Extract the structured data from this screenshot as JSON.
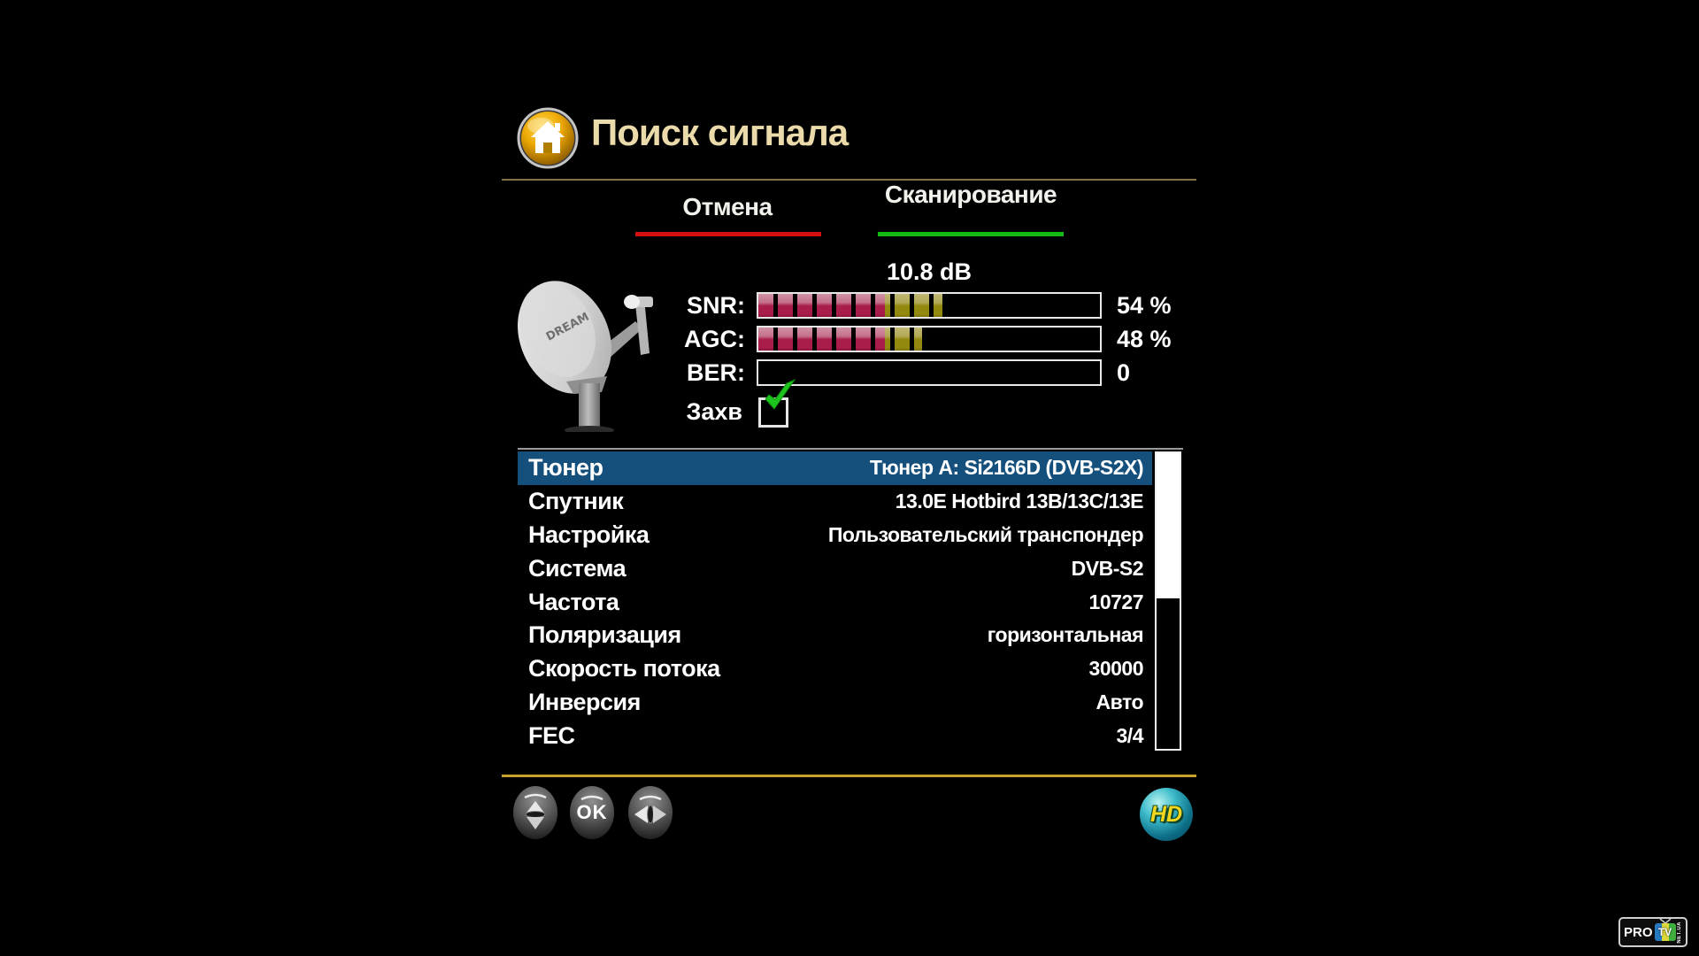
{
  "header": {
    "title": "Поиск сигнала",
    "icon": "home-icon"
  },
  "actions": {
    "cancel_label": "Отмена",
    "scan_label": "Сканирование"
  },
  "signal": {
    "db_value": "10.8 dB",
    "pink_zone_percent": 37,
    "meters": [
      {
        "label": "SNR:",
        "value": "54 %",
        "percent": 54
      },
      {
        "label": "AGC:",
        "value": "48 %",
        "percent": 48
      },
      {
        "label": "BER:",
        "value": "0",
        "percent": 0
      }
    ],
    "lock_label": "Захв",
    "lock_checked": true
  },
  "settings": {
    "rows": [
      {
        "label": "Тюнер",
        "value": "Тюнер A: Si2166D (DVB-S2X)",
        "selected": true
      },
      {
        "label": "Спутник",
        "value": "13.0E Hotbird 13B/13C/13E",
        "selected": false
      },
      {
        "label": "Настройка",
        "value": "Пользовательский транспондер",
        "selected": false
      },
      {
        "label": "Система",
        "value": "DVB-S2",
        "selected": false
      },
      {
        "label": "Частота",
        "value": "10727",
        "selected": false
      },
      {
        "label": "Поляризация",
        "value": "горизонтальная",
        "selected": false
      },
      {
        "label": "Скорость потока",
        "value": "30000",
        "selected": false
      },
      {
        "label": "Инверсия",
        "value": "Авто",
        "selected": false
      },
      {
        "label": "FEC",
        "value": "3/4",
        "selected": false
      }
    ]
  },
  "footer": {
    "ok_label": "OK",
    "hd_label": "HD"
  },
  "branding": {
    "pro": "PRO",
    "tv": "TV",
    "net": "NET.UA"
  },
  "colors": {
    "title_text": "#ecdbaa",
    "cancel_underline": "#d40f0f",
    "scan_underline": "#15b915",
    "selected_row_bg": "#15507c",
    "bar_fill_low": "#a81d4a",
    "bar_fill_mid": "#93890f",
    "top_divider": "#84714a",
    "bottom_divider": "#c9a42a",
    "check_green": "#1ec41e"
  }
}
